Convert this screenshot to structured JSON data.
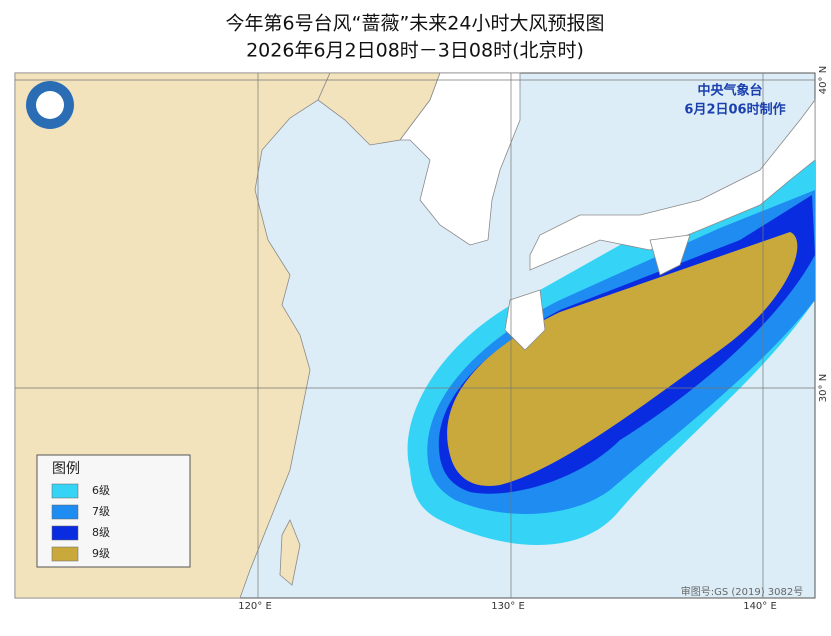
{
  "title": "今年第6号台风“蔷薇”未来24小时大风预报图",
  "subtitle": "2026年6月2日08时－3日08时(北京时)",
  "issuer": "中央气象台",
  "issue_time": "6月2日06时制作",
  "legend": {
    "title": "图例",
    "items": [
      {
        "label": "6级",
        "color": "#35d4f6"
      },
      {
        "label": "7级",
        "color": "#1e8cf0"
      },
      {
        "label": "8级",
        "color": "#0a2ce0"
      },
      {
        "label": "9级",
        "color": "#c9a93b"
      }
    ]
  },
  "lon_labels": [
    "120° E",
    "130° E",
    "140° E"
  ],
  "lat_labels": [
    "30° N",
    "40° N"
  ],
  "map_number": "审图号:GS (2019) 3082号"
}
